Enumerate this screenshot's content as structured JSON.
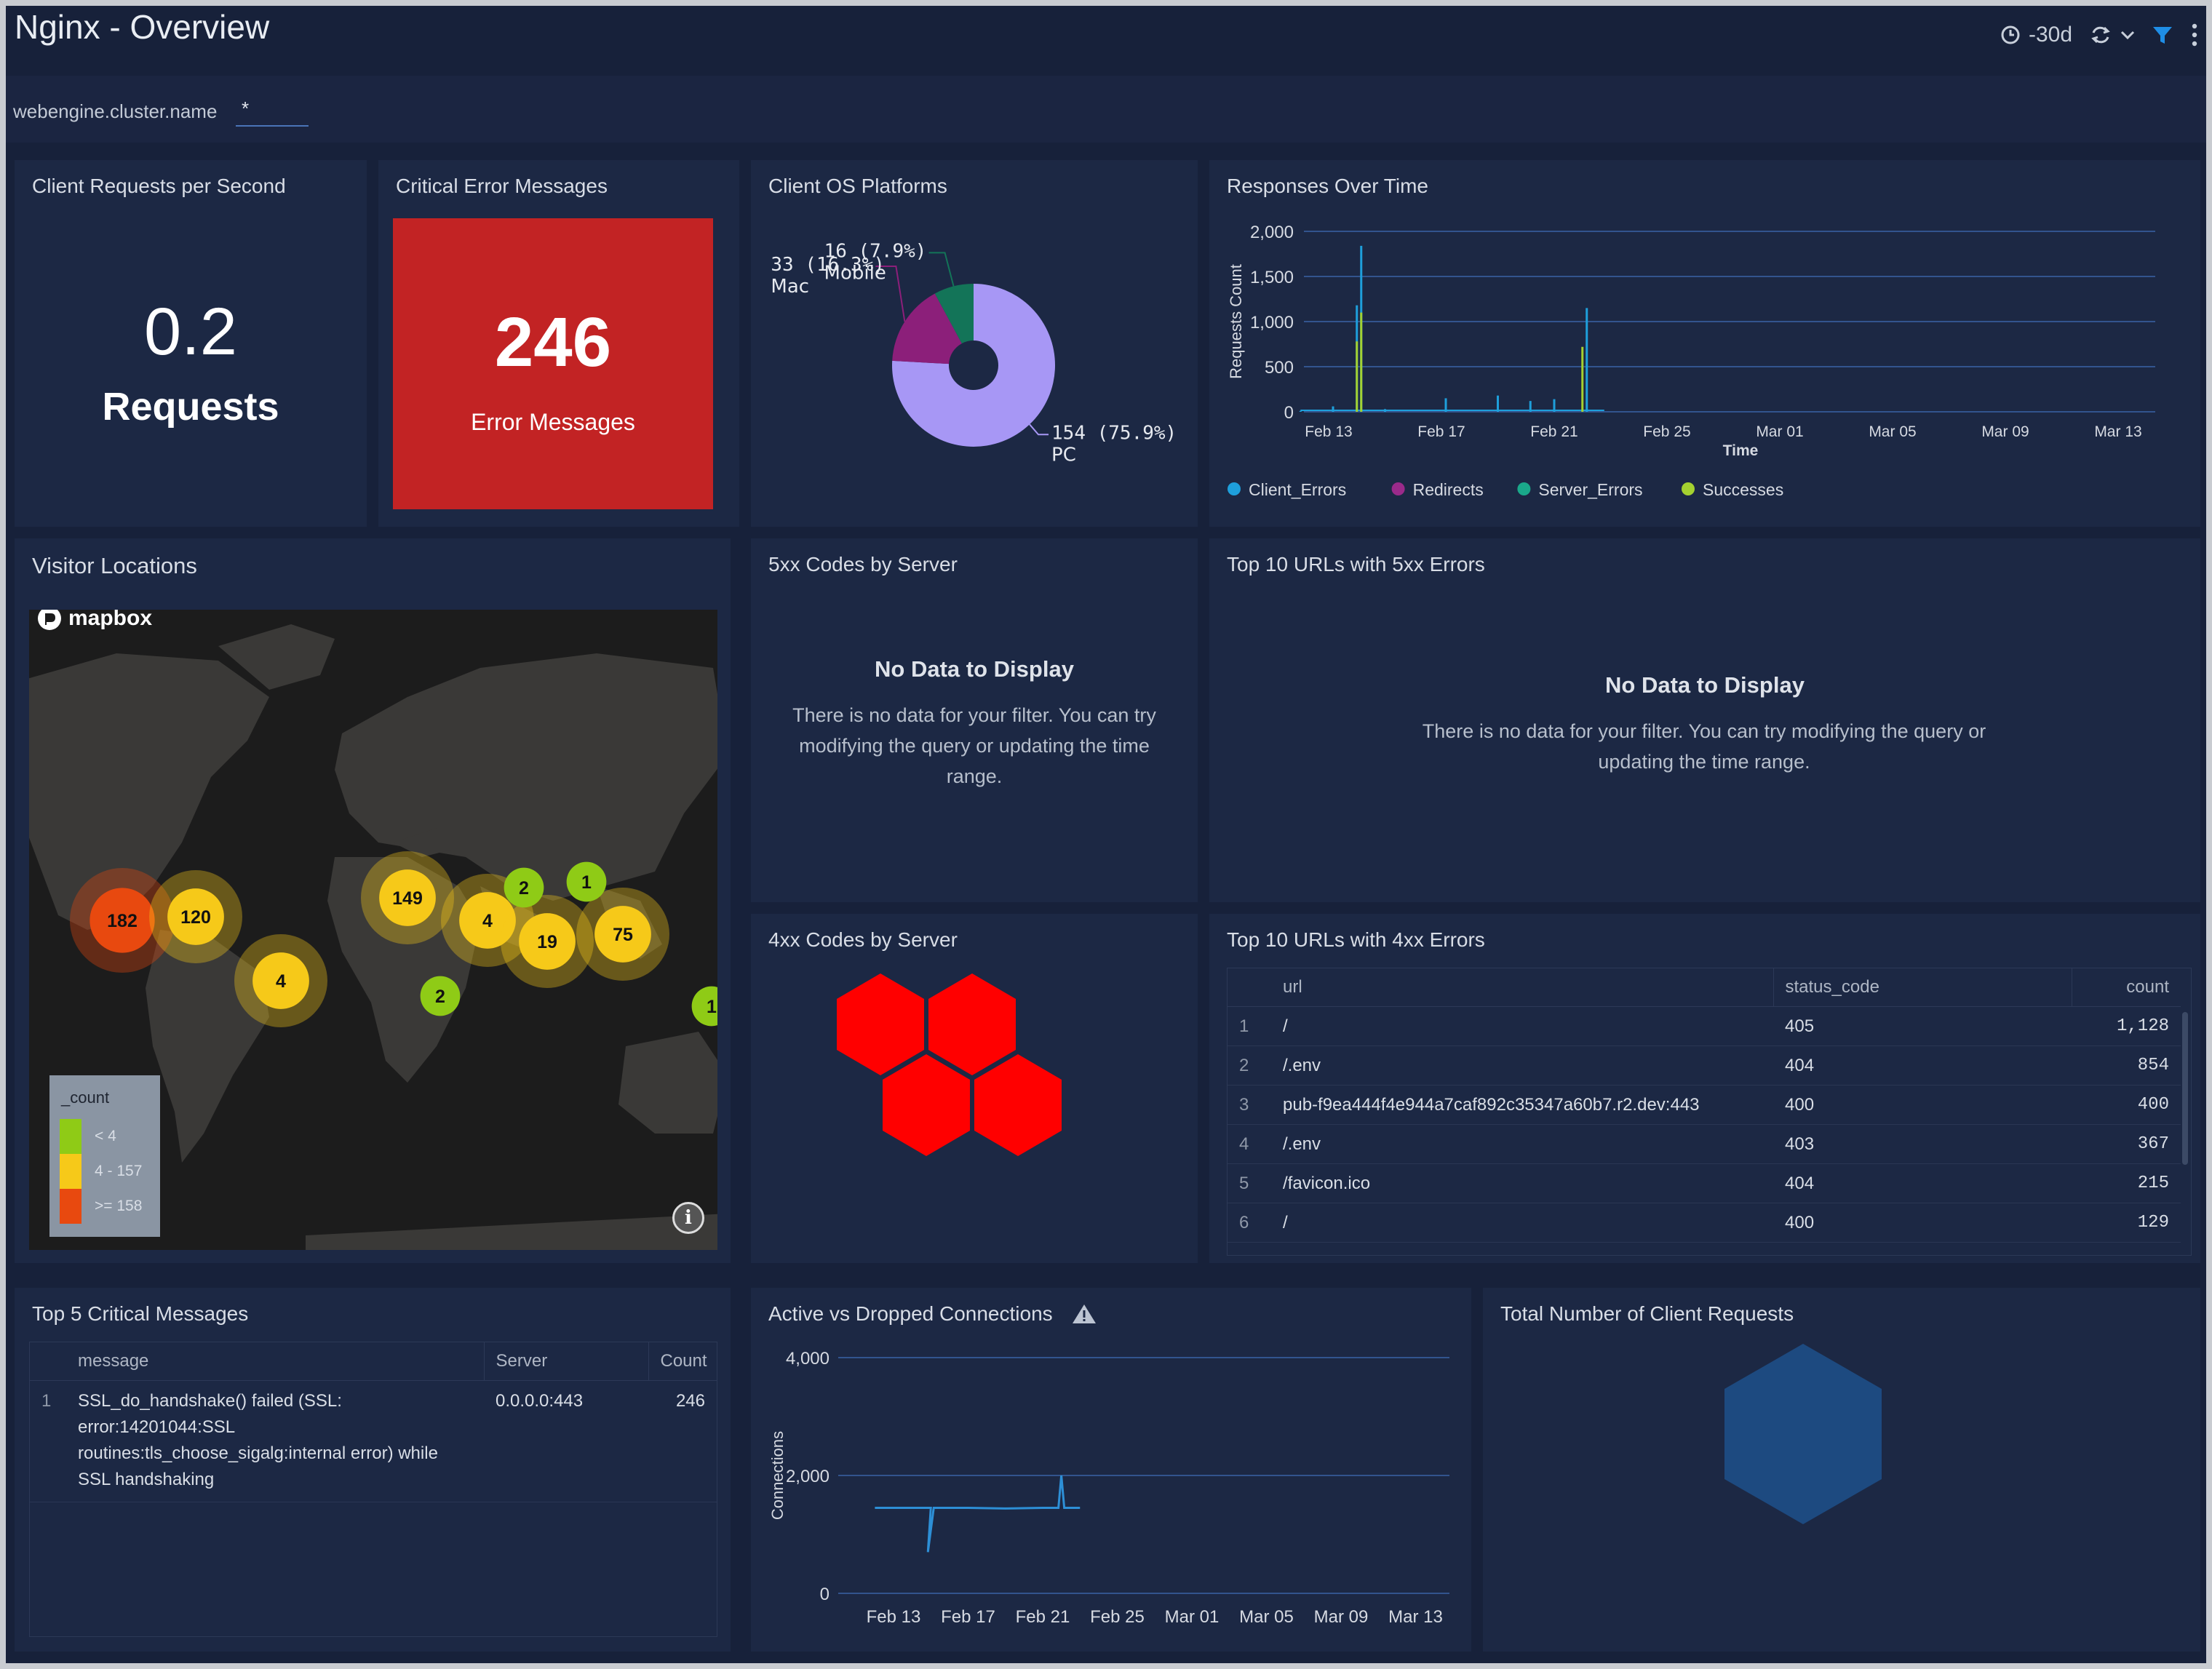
{
  "header": {
    "title": "Nginx - Overview",
    "time_range": "-30d",
    "clock_icon": "clock-icon",
    "refresh_icon": "refresh-icon",
    "filter_icon": "filter-icon",
    "menu_icon": "more-vertical-icon"
  },
  "filter": {
    "label": "webengine.cluster.name",
    "value": "*"
  },
  "panels": {
    "client_requests": {
      "title": "Client Requests per Second",
      "value": "0.2",
      "unit": "Requests"
    },
    "critical_errors": {
      "title": "Critical Error Messages",
      "value": "246",
      "unit": "Error Messages",
      "bg_color": "#c22324"
    },
    "client_os": {
      "title": "Client OS Platforms"
    },
    "responses_over_time": {
      "title": "Responses Over Time"
    },
    "visitor_locations": {
      "title": "Visitor Locations",
      "map_brand": "mapbox",
      "legend_title": "_count",
      "legend_items": [
        "< 4",
        "4 - 157",
        ">= 158"
      ],
      "info_icon": "info-icon"
    },
    "codes_5xx": {
      "title": "5xx Codes by Server",
      "nodata_title": "No Data to Display",
      "nodata_text": "There is no data for your filter. You can try modifying the query or updating the time range."
    },
    "urls_5xx": {
      "title": "Top 10 URLs with 5xx Errors",
      "nodata_title": "No Data to Display",
      "nodata_text": "There is no data for your filter. You can try modifying the query or updating the time range."
    },
    "codes_4xx": {
      "title": "4xx Codes by Server"
    },
    "urls_4xx": {
      "title": "Top 10 URLs with 4xx Errors",
      "columns": [
        "url",
        "status_code",
        "count"
      ],
      "rows": [
        {
          "i": "1",
          "url": "/",
          "status": "405",
          "count": "1,128"
        },
        {
          "i": "2",
          "url": "/.env",
          "status": "404",
          "count": "854"
        },
        {
          "i": "3",
          "url": "pub-f9ea444f4e944a7caf892c35347a60b7.r2.dev:443",
          "status": "400",
          "count": "400"
        },
        {
          "i": "4",
          "url": "/.env",
          "status": "403",
          "count": "367"
        },
        {
          "i": "5",
          "url": "/favicon.ico",
          "status": "404",
          "count": "215"
        },
        {
          "i": "6",
          "url": "/",
          "status": "400",
          "count": "129"
        }
      ]
    },
    "top5_critical": {
      "title": "Top 5 Critical Messages",
      "columns": [
        "message",
        "Server",
        "Count"
      ],
      "rows": [
        {
          "i": "1",
          "message_lines": [
            "SSL_do_handshake() failed (SSL:",
            "error:14201044:SSL",
            "routines:tls_choose_sigalg:internal error) while",
            "SSL handshaking"
          ],
          "server": "0.0.0.0:443",
          "count": "246"
        }
      ]
    },
    "connections": {
      "title": "Active vs Dropped Connections",
      "warning_icon": "warning-icon"
    },
    "total_requests": {
      "title": "Total Number of Client Requests",
      "hex_color": "#1d4a80"
    }
  },
  "chart_data": [
    {
      "type": "pie",
      "title": "Client OS Platforms",
      "slices": [
        {
          "label": "PC",
          "value": 154,
          "pct": "75.9%",
          "color": "#a797f5"
        },
        {
          "label": "Mac",
          "value": 33,
          "pct": "16.3%",
          "color": "#8c1f7a"
        },
        {
          "label": "Mobile",
          "value": 16,
          "pct": "7.9%",
          "color": "#137458"
        }
      ]
    },
    {
      "type": "line",
      "title": "Responses Over Time",
      "xlabel": "Time",
      "ylabel": "Requests Count",
      "ylim": [
        0,
        2000
      ],
      "yticks": [
        "0",
        "500",
        "1,000",
        "1,500",
        "2,000"
      ],
      "xticks": [
        "Feb 13",
        "Feb 17",
        "Feb 21",
        "Feb 25",
        "Mar 01",
        "Mar 05",
        "Mar 09",
        "Mar 13"
      ],
      "series": [
        {
          "name": "Client_Errors",
          "color": "#1e9fdb",
          "spikes": [
            [
              "Feb 12",
              10
            ],
            [
              "Feb 13",
              60
            ],
            [
              "Feb 14",
              1180
            ],
            [
              "Feb 14",
              1840
            ],
            [
              "Feb 15",
              30
            ],
            [
              "Feb 17",
              150
            ],
            [
              "Feb 19",
              180
            ],
            [
              "Feb 20",
              120
            ],
            [
              "Feb 21",
              140
            ],
            [
              "Feb 22",
              1150
            ]
          ]
        },
        {
          "name": "Redirects",
          "color": "#9a2a8a",
          "spikes": []
        },
        {
          "name": "Server_Errors",
          "color": "#1aa88a",
          "spikes": []
        },
        {
          "name": "Successes",
          "color": "#a4d130",
          "spikes": [
            [
              "Feb 14",
              780
            ],
            [
              "Feb 14",
              1100
            ],
            [
              "Feb 22",
              720
            ]
          ]
        }
      ],
      "legend": "bottom"
    },
    {
      "type": "line",
      "title": "Active vs Dropped Connections",
      "ylabel": "Connections",
      "ylim": [
        0,
        4000
      ],
      "yticks": [
        "0",
        "2,000",
        "4,000"
      ],
      "xticks": [
        "Feb 13",
        "Feb 17",
        "Feb 21",
        "Feb 25",
        "Mar 01",
        "Mar 05",
        "Mar 09",
        "Mar 13"
      ],
      "series": [
        {
          "name": "Connections",
          "color": "#2d8fd6",
          "points": [
            [
              "Feb 12",
              1450
            ],
            [
              "Feb 14",
              1450
            ],
            [
              "Feb 15",
              1450
            ],
            [
              "Feb 15",
              700
            ],
            [
              "Feb 15",
              1450
            ],
            [
              "Feb 17",
              1450
            ],
            [
              "Feb 19",
              1440
            ],
            [
              "Feb 21",
              1450
            ],
            [
              "Feb 22",
              1450
            ],
            [
              "Feb 22",
              2000
            ],
            [
              "Feb 22",
              1450
            ],
            [
              "Feb 23",
              1450
            ]
          ]
        }
      ]
    },
    {
      "type": "scatter",
      "title": "Visitor Locations",
      "legend_title": "_count",
      "clusters": [
        {
          "label": "182",
          "count": 182,
          "color": "#e8490f"
        },
        {
          "label": "120",
          "count": 120,
          "color": "#f6c919"
        },
        {
          "label": "149",
          "count": 149,
          "color": "#f6c919"
        },
        {
          "label": "4",
          "count": 4,
          "color": "#f6c919"
        },
        {
          "label": "19",
          "count": 19,
          "color": "#f6c919"
        },
        {
          "label": "75",
          "count": 75,
          "color": "#f6c919"
        },
        {
          "label": "2",
          "count": 2,
          "color": "#8fcb16"
        },
        {
          "label": "1",
          "count": 1,
          "color": "#8fcb16"
        },
        {
          "label": "4",
          "count": 4,
          "color": "#f6c919"
        },
        {
          "label": "2",
          "count": 2,
          "color": "#8fcb16"
        },
        {
          "label": "1",
          "count": 1,
          "color": "#8fcb16"
        }
      ]
    }
  ]
}
